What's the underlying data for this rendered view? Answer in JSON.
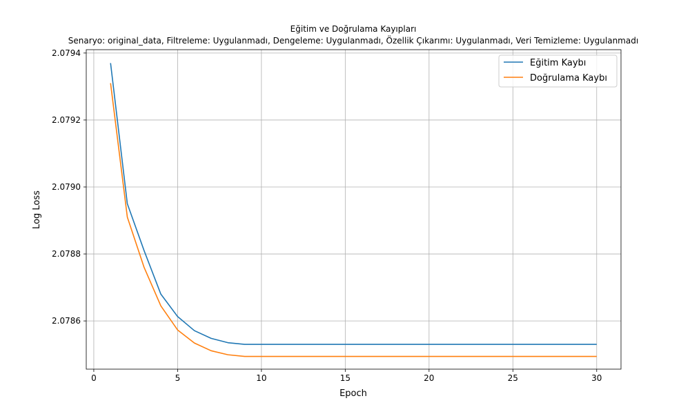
{
  "chart_data": {
    "type": "line",
    "title": "Eğitim ve Doğrulama Kayıpları",
    "subtitle": "Senaryo: original_data, Filtreleme: Uygulanmadı, Dengeleme: Uygulanmadı, Özellik Çıkarımı: Uygulanmadı, Veri Temizleme: Uygulanmadı",
    "xlabel": "Epoch",
    "ylabel": "Log Loss",
    "xlim": [
      -0.45,
      31.45
    ],
    "ylim": [
      2.078456,
      2.07941
    ],
    "xticks": [
      0,
      5,
      10,
      15,
      20,
      25,
      30
    ],
    "xtick_labels": [
      "0",
      "5",
      "10",
      "15",
      "20",
      "25",
      "30"
    ],
    "yticks": [
      2.0786,
      2.0788,
      2.079,
      2.0792,
      2.0794
    ],
    "ytick_labels": [
      "2.0786",
      "2.0788",
      "2.0790",
      "2.0792",
      "2.0794"
    ],
    "grid": true,
    "legend_position": "top-right",
    "x": [
      1,
      2,
      3,
      4,
      5,
      6,
      7,
      8,
      9,
      10,
      11,
      12,
      13,
      14,
      15,
      16,
      17,
      18,
      19,
      20,
      21,
      22,
      23,
      24,
      25,
      26,
      27,
      28,
      29,
      30
    ],
    "series": [
      {
        "name": "Eğitim Kaybı",
        "color": "#1f77b4",
        "values": [
          2.07937,
          2.07895,
          2.07881,
          2.07868,
          2.078613,
          2.078571,
          2.078548,
          2.078535,
          2.07853,
          2.07853,
          2.07853,
          2.07853,
          2.07853,
          2.07853,
          2.07853,
          2.07853,
          2.07853,
          2.07853,
          2.07853,
          2.07853,
          2.07853,
          2.07853,
          2.07853,
          2.07853,
          2.07853,
          2.07853,
          2.07853,
          2.07853,
          2.07853,
          2.07853
        ]
      },
      {
        "name": "Doğrulama Kaybı",
        "color": "#ff7f0e",
        "values": [
          2.07931,
          2.07891,
          2.07876,
          2.078645,
          2.078573,
          2.078534,
          2.078511,
          2.078499,
          2.078494,
          2.078494,
          2.078494,
          2.078494,
          2.078494,
          2.078494,
          2.078494,
          2.078494,
          2.078494,
          2.078494,
          2.078494,
          2.078494,
          2.078494,
          2.078494,
          2.078494,
          2.078494,
          2.078494,
          2.078494,
          2.078494,
          2.078494,
          2.078494,
          2.078494
        ]
      }
    ]
  }
}
